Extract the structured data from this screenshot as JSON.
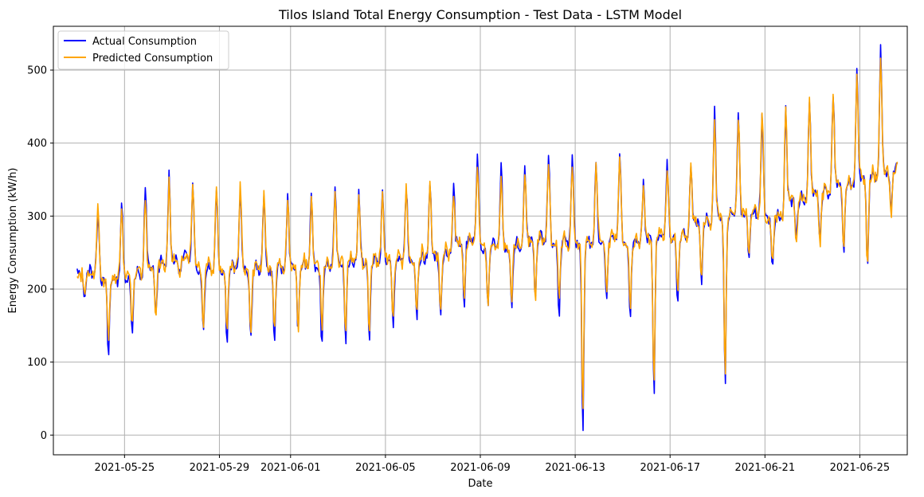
{
  "chart_data": {
    "type": "line",
    "title": "Tilos Island Total Energy Consumption - Test Data - LSTM Model",
    "xlabel": "Date",
    "ylabel": "Energy Consumption (kW/h)",
    "x_start": "2021-05-23",
    "x_end": "2021-06-26",
    "xlim": [
      "2021-05-22",
      "2021-06-27"
    ],
    "ylim": [
      -27,
      560
    ],
    "x_ticks": [
      "2021-05-25",
      "2021-05-29",
      "2021-06-01",
      "2021-06-05",
      "2021-06-09",
      "2021-06-13",
      "2021-06-17",
      "2021-06-21",
      "2021-06-25"
    ],
    "y_ticks": [
      0,
      100,
      200,
      300,
      400,
      500
    ],
    "grid": true,
    "legend_position": "top-left",
    "series": [
      {
        "name": "Actual Consumption",
        "color": "#0000ff",
        "dates": [
          "2021-05-23",
          "2021-05-24",
          "2021-05-25",
          "2021-05-26",
          "2021-05-27",
          "2021-05-28",
          "2021-05-29",
          "2021-05-30",
          "2021-05-31",
          "2021-06-01",
          "2021-06-02",
          "2021-06-03",
          "2021-06-04",
          "2021-06-05",
          "2021-06-06",
          "2021-06-07",
          "2021-06-08",
          "2021-06-09",
          "2021-06-10",
          "2021-06-11",
          "2021-06-12",
          "2021-06-13",
          "2021-06-14",
          "2021-06-15",
          "2021-06-16",
          "2021-06-17",
          "2021-06-18",
          "2021-06-19",
          "2021-06-20",
          "2021-06-21",
          "2021-06-22",
          "2021-06-23",
          "2021-06-24",
          "2021-06-25",
          "2021-06-26"
        ],
        "peak": [
          310,
          320,
          340,
          360,
          345,
          340,
          335,
          330,
          330,
          325,
          335,
          335,
          335,
          340,
          345,
          340,
          380,
          370,
          365,
          385,
          380,
          375,
          385,
          350,
          375,
          370,
          445,
          440,
          435,
          445,
          460,
          470,
          500,
          535,
          520
        ],
        "trough": [
          190,
          105,
          140,
          160,
          220,
          140,
          128,
          125,
          125,
          138,
          120,
          125,
          125,
          148,
          155,
          158,
          175,
          175,
          170,
          180,
          165,
          0,
          185,
          160,
          50,
          180,
          205,
          65,
          245,
          225,
          270,
          268,
          250,
          225,
          305
        ],
        "mid": [
          220,
          210,
          215,
          230,
          240,
          225,
          225,
          225,
          225,
          230,
          230,
          235,
          235,
          235,
          240,
          245,
          265,
          255,
          255,
          265,
          260,
          260,
          265,
          260,
          270,
          270,
          290,
          300,
          300,
          295,
          320,
          330,
          340,
          350,
          360
        ]
      },
      {
        "name": "Predicted Consumption",
        "color": "#ffa500",
        "dates": [
          "2021-05-23",
          "2021-05-24",
          "2021-05-25",
          "2021-05-26",
          "2021-05-27",
          "2021-05-28",
          "2021-05-29",
          "2021-05-30",
          "2021-05-31",
          "2021-06-01",
          "2021-06-02",
          "2021-06-03",
          "2021-06-04",
          "2021-06-05",
          "2021-06-06",
          "2021-06-07",
          "2021-06-08",
          "2021-06-09",
          "2021-06-10",
          "2021-06-11",
          "2021-06-12",
          "2021-06-13",
          "2021-06-14",
          "2021-06-15",
          "2021-06-16",
          "2021-06-17",
          "2021-06-18",
          "2021-06-19",
          "2021-06-20",
          "2021-06-21",
          "2021-06-22",
          "2021-06-23",
          "2021-06-24",
          "2021-06-25",
          "2021-06-26"
        ],
        "peak": [
          310,
          312,
          330,
          350,
          345,
          340,
          345,
          330,
          325,
          320,
          330,
          330,
          330,
          340,
          340,
          335,
          370,
          360,
          360,
          375,
          370,
          370,
          385,
          350,
          370,
          370,
          430,
          435,
          440,
          445,
          460,
          465,
          495,
          525,
          510
        ],
        "trough": [
          195,
          125,
          150,
          165,
          215,
          145,
          140,
          135,
          135,
          138,
          145,
          145,
          140,
          155,
          160,
          165,
          178,
          178,
          178,
          182,
          185,
          25,
          195,
          175,
          60,
          195,
          210,
          70,
          240,
          230,
          260,
          260,
          250,
          225,
          300
        ],
        "mid": [
          220,
          212,
          218,
          232,
          240,
          228,
          228,
          228,
          228,
          232,
          232,
          238,
          238,
          238,
          242,
          248,
          265,
          258,
          258,
          265,
          262,
          262,
          268,
          262,
          272,
          272,
          292,
          302,
          302,
          298,
          322,
          332,
          342,
          352,
          362
        ]
      }
    ]
  }
}
